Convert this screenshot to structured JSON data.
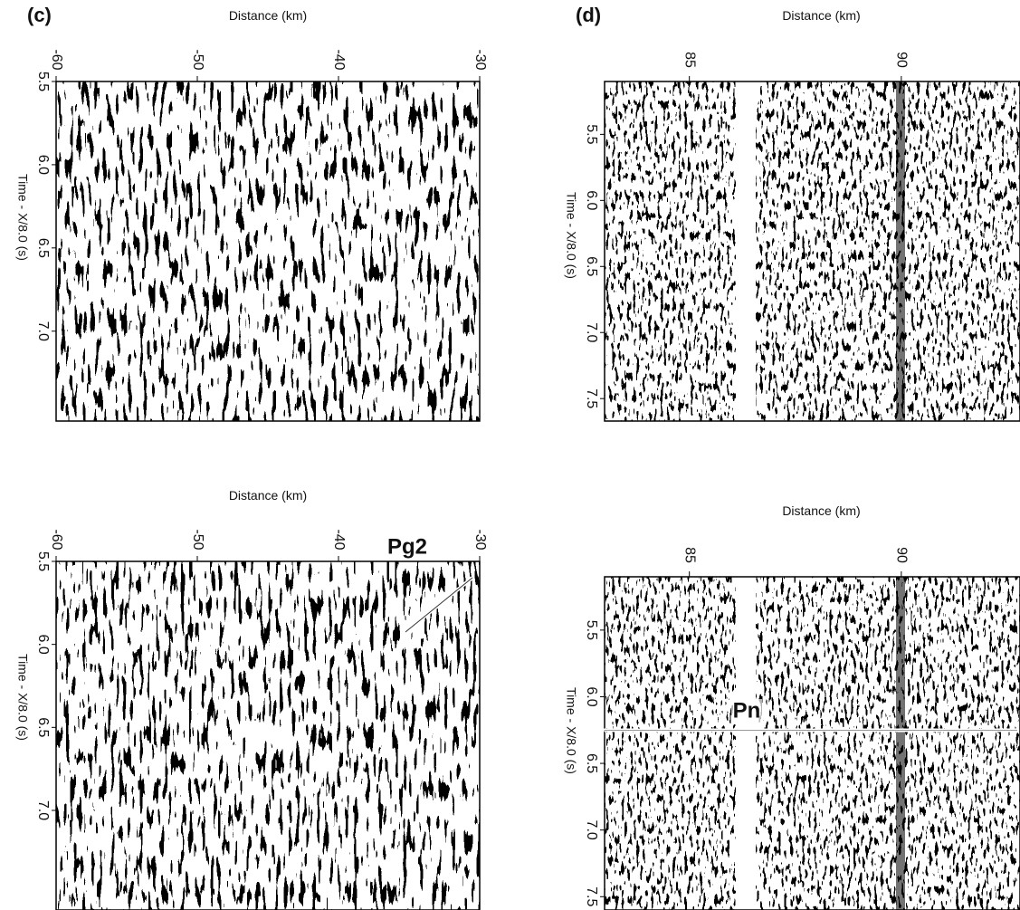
{
  "chart_data": [
    {
      "type": "seismic-section",
      "panel_label": "(c)",
      "xlabel": "Distance (km)",
      "ylabel": "Time - X/8.0 (s)",
      "xlim": [
        -60,
        -30
      ],
      "xticks": [
        -60,
        -50,
        -40,
        -30
      ],
      "ylim": [
        5.5,
        7.54
      ],
      "yticks": [
        5.5,
        {
          "value": 6,
          "label": "6.0"
        },
        6.5,
        {
          "value": 7,
          "label": "7.0"
        }
      ]
    },
    {
      "type": "seismic-section",
      "panel_label": "(d)",
      "xlabel": "Distance (km)",
      "ylabel": "Time - X/8.0 (s)",
      "xlim": [
        83,
        92.8
      ],
      "xticks": [
        85,
        90
      ],
      "ylim": [
        5.1,
        7.67
      ],
      "yticks": [
        5.5,
        {
          "value": 6,
          "label": "6.0"
        },
        6.5,
        {
          "value": 7,
          "label": "7.0"
        },
        7.5
      ]
    },
    {
      "type": "seismic-section",
      "xlabel": "Distance (km)",
      "ylabel": "Time - X/8.0 (s)",
      "annotation": "Pg2",
      "xlim": [
        -60,
        -30
      ],
      "xticks": [
        -60,
        -50,
        -40,
        -30
      ],
      "ylim": [
        5.5,
        7.6
      ],
      "yticks": [
        5.5,
        {
          "value": 6,
          "label": "6.0"
        },
        6.5,
        {
          "value": 7,
          "label": "7.0"
        }
      ]
    },
    {
      "type": "seismic-section",
      "xlabel": "Distance (km)",
      "ylabel": "Time - X/8.0 (s)",
      "annotation": "Pn",
      "xlim": [
        83,
        92.8
      ],
      "xticks": [
        85,
        90
      ],
      "ylim": [
        5.1,
        7.6
      ],
      "yticks": [
        5.5,
        {
          "value": 6,
          "label": "6.0"
        },
        6.5,
        {
          "value": 7,
          "label": "7.0"
        },
        7.5
      ]
    }
  ]
}
